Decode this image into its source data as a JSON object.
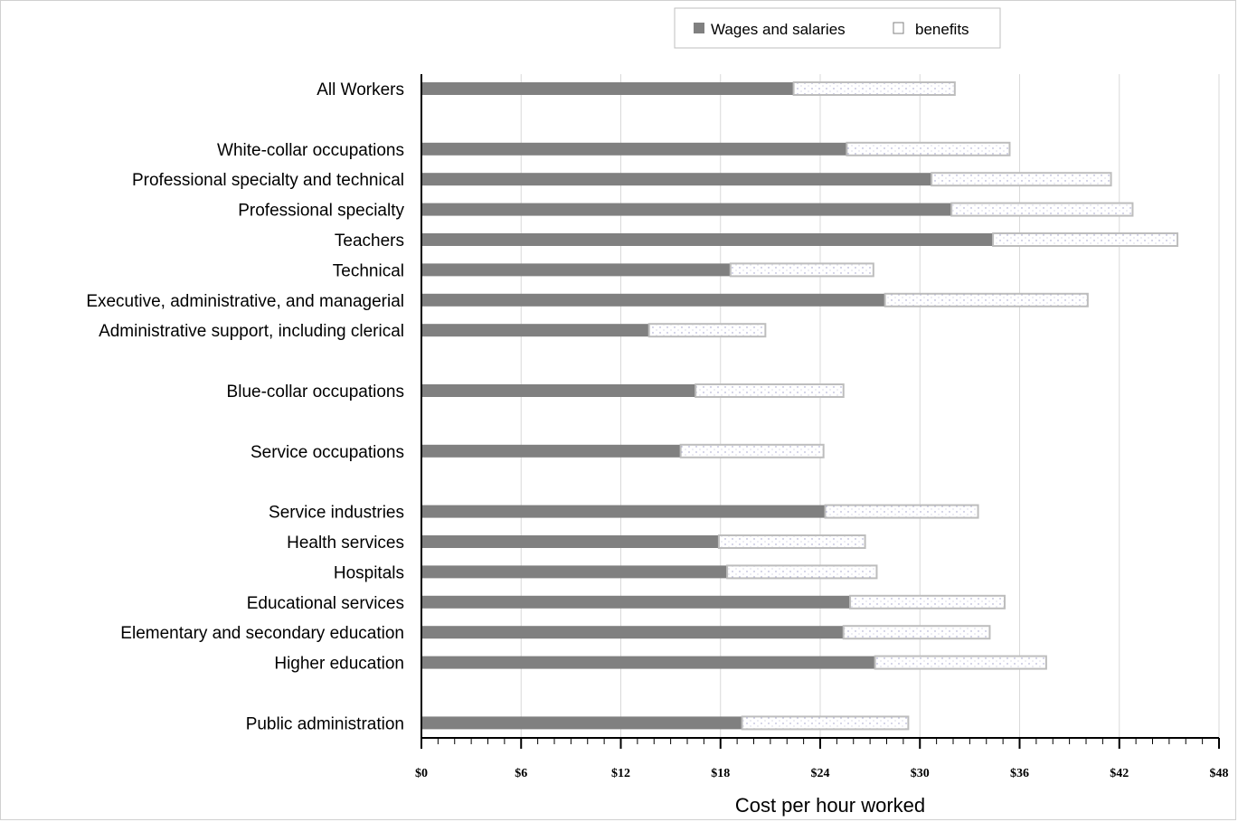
{
  "chart_data": {
    "type": "bar",
    "orientation": "horizontal",
    "stacked": true,
    "xlabel": "Cost per hour worked",
    "xlim": [
      0,
      48
    ],
    "x_ticks": [
      "$0",
      "$6",
      "$12",
      "$18",
      "$24",
      "$30",
      "$36",
      "$42",
      "$48"
    ],
    "grid": "vertical",
    "legend_position": "top-right",
    "categories": [
      "All Workers",
      "",
      "White-collar occupations",
      "Professional specialty and technical",
      "Professional specialty",
      "Teachers",
      "Technical",
      "Executive, administrative, and managerial",
      "Administrative support, including clerical",
      "",
      "Blue-collar occupations",
      "",
      "Service occupations",
      "",
      "Service industries",
      "Health services",
      "Hospitals",
      "Educational services",
      "Elementary and secondary  education",
      "Higher education",
      "",
      "Public administration"
    ],
    "series": [
      {
        "name": "Wages and salaries",
        "color": "#808080",
        "values": [
          22.4,
          null,
          25.6,
          30.7,
          31.9,
          34.4,
          18.6,
          27.9,
          13.7,
          null,
          16.5,
          null,
          15.6,
          null,
          24.3,
          17.9,
          18.4,
          25.8,
          25.4,
          27.3,
          null,
          19.3
        ]
      },
      {
        "name": "benefits",
        "color": "#ffffff",
        "values": [
          9.7,
          null,
          9.8,
          10.8,
          10.9,
          11.1,
          8.6,
          12.2,
          7.0,
          null,
          8.9,
          null,
          8.6,
          null,
          9.2,
          8.8,
          9.0,
          9.3,
          8.8,
          10.3,
          null,
          10.0
        ]
      }
    ]
  }
}
